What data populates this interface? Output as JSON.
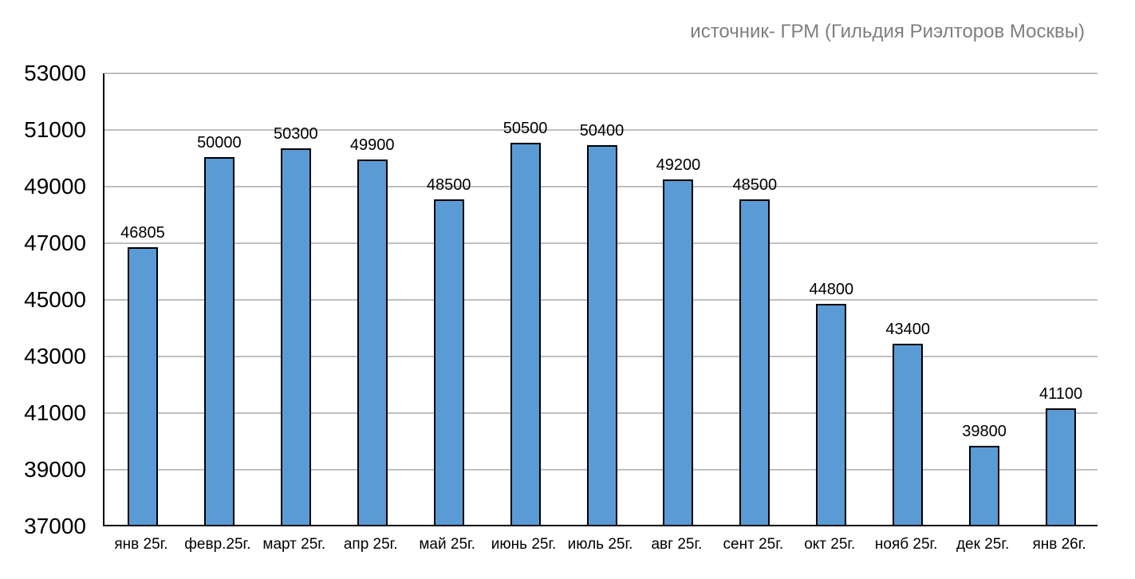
{
  "chart_data": {
    "type": "bar",
    "title": "источник- ГРМ (Гильдия Риэлторов Москвы)",
    "categories": [
      "янв 25г.",
      "февр.25г.",
      "март 25г.",
      "апр 25г.",
      "май 25г.",
      "июнь 25г.",
      "июль 25г.",
      "авг 25г.",
      "сент 25г.",
      "окт 25г.",
      "нояб 25г.",
      "дек 25г.",
      "янв 26г."
    ],
    "values": [
      46805,
      50000,
      50300,
      49900,
      48500,
      50500,
      50400,
      49200,
      48500,
      44800,
      43400,
      39800,
      41100
    ],
    "value_labels": [
      "46805",
      "50000",
      "50300",
      "49900",
      "48500",
      "50500",
      "50400",
      "49200",
      "48500",
      "44800",
      "43400",
      "39800",
      "41100"
    ],
    "xlabel": "",
    "ylabel": "",
    "ylim": [
      37000,
      53000
    ],
    "ytick_step": 2000,
    "yticks": [
      37000,
      39000,
      41000,
      43000,
      45000,
      47000,
      49000,
      51000,
      53000
    ],
    "grid": true,
    "legend": null,
    "bar_color": "#5b9bd5",
    "bar_border_color": "#000000",
    "gridline_color": "#bfbfbf",
    "axis_color": "#000000",
    "title_color": "#7f7f7f"
  }
}
